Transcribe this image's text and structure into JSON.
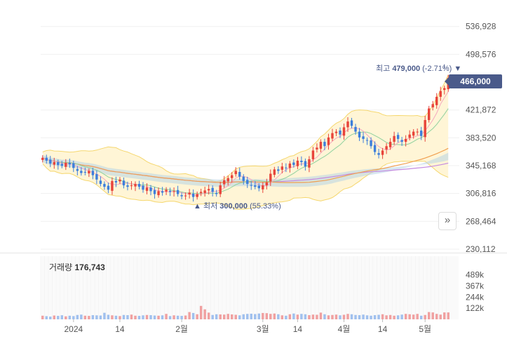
{
  "chart_data": {
    "type": "candlestick",
    "price_axis": {
      "ticks": [
        "536,928",
        "498,576",
        "421,872",
        "383,520",
        "345,168",
        "306,816",
        "268,464",
        "230,112"
      ],
      "tick_values": [
        536928,
        498576,
        421872,
        383520,
        345168,
        306816,
        268464,
        230112
      ],
      "range": [
        230112,
        556000
      ]
    },
    "x_ticks": [
      {
        "label": "2024",
        "index": 8
      },
      {
        "label": "14",
        "index": 20
      },
      {
        "label": "2월",
        "index": 36
      },
      {
        "label": "3월",
        "index": 57
      },
      {
        "label": "14",
        "index": 66
      },
      {
        "label": "4월",
        "index": 78
      },
      {
        "label": "14",
        "index": 88
      },
      {
        "label": "5월",
        "index": 99
      }
    ],
    "current_price": "466,000",
    "current_value": 466000,
    "high": {
      "prefix": "최고",
      "value": "479,000",
      "change": "(-2.71%)",
      "arrow": "▼",
      "price": 479000,
      "index": 104
    },
    "low": {
      "prefix": "최저",
      "value": "300,000",
      "change": "(55.33%)",
      "arrow": "▲",
      "price": 300000,
      "index": 46
    },
    "volume": {
      "title": "거래량",
      "value": "176,743",
      "ticks": [
        "489k",
        "367k",
        "244k",
        "122k"
      ],
      "tick_values": [
        489000,
        367000,
        244000,
        122000
      ]
    },
    "colors": {
      "up": "#e8443a",
      "down": "#3d7fdb",
      "vol_up": "#f0a0a0",
      "vol_down": "#a0c0ee",
      "band": "#fff5d6"
    },
    "closes": [
      356000,
      352000,
      348000,
      350000,
      346000,
      345000,
      349000,
      347000,
      342000,
      338000,
      335000,
      336000,
      338000,
      332000,
      326000,
      320000,
      316000,
      312000,
      324000,
      322000,
      326000,
      318000,
      316000,
      318000,
      320000,
      316000,
      312000,
      315000,
      310000,
      306000,
      310000,
      308000,
      312000,
      309000,
      310000,
      306000,
      303000,
      304000,
      308000,
      302000,
      306000,
      309000,
      311000,
      313000,
      309000,
      306000,
      318000,
      325000,
      328000,
      332000,
      338000,
      330000,
      324000,
      320000,
      318000,
      316000,
      314000,
      318000,
      322000,
      334000,
      340000,
      338000,
      344000,
      342000,
      348000,
      346000,
      352000,
      350000,
      344000,
      354000,
      366000,
      370000,
      378000,
      372000,
      384000,
      390000,
      392000,
      388000,
      398000,
      406000,
      400000,
      392000,
      384000,
      382000,
      380000,
      372000,
      364000,
      360000,
      366000,
      372000,
      378000,
      386000,
      382000,
      378000,
      382000,
      388000,
      392000,
      392000,
      386000,
      408000,
      424000,
      430000,
      440000,
      448000,
      452000,
      466000
    ],
    "volumes": [
      40000,
      35000,
      30000,
      42000,
      38000,
      45000,
      33000,
      40000,
      36000,
      48000,
      52000,
      40000,
      38000,
      46000,
      44000,
      42000,
      72000,
      50000,
      44000,
      40000,
      36000,
      48000,
      46000,
      52000,
      40000,
      38000,
      44000,
      48000,
      46000,
      42000,
      40000,
      44000,
      60000,
      36000,
      44000,
      40000,
      38000,
      42000,
      80000,
      70000,
      56000,
      148000,
      110000,
      74000,
      48000,
      56000,
      54000,
      52000,
      60000,
      54000,
      50000,
      44000,
      56000,
      60000,
      62000,
      58000,
      64000,
      70000,
      68000,
      60000,
      64000,
      56000,
      44000,
      40000,
      56000,
      64000,
      52000,
      60000,
      56000,
      46000,
      52000,
      50000,
      74000,
      56000,
      44000,
      48000,
      52000,
      44000,
      50000,
      60000,
      56000,
      48000,
      46000,
      52000,
      44000,
      40000,
      46000,
      50000,
      56000,
      44000,
      48000,
      40000,
      44000,
      52000,
      60000,
      56000,
      52000,
      60000,
      40000,
      48000,
      80000,
      76000,
      60000,
      52000,
      76000,
      76000
    ]
  }
}
